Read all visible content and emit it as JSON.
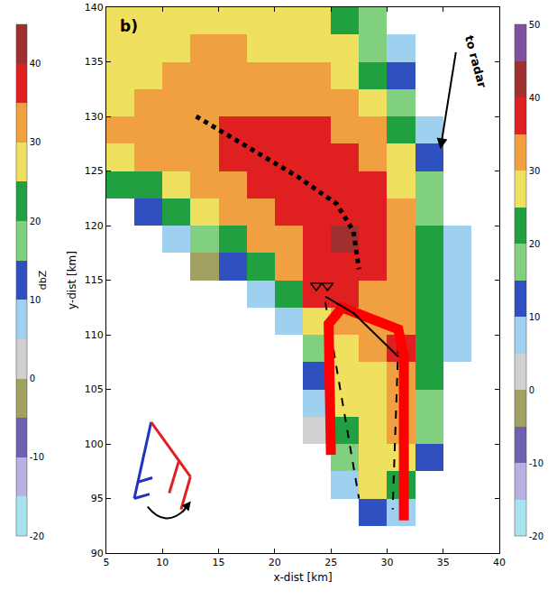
{
  "chart_data": {
    "type": "heatmap",
    "panel_label": "b)",
    "x_label": "x-dist [km]",
    "y_label": "y-dist [km]",
    "annotations": [
      "to radar"
    ],
    "x": [
      6.25,
      8.75,
      11.25,
      13.75,
      16.25,
      18.75,
      21.25,
      23.75,
      26.25,
      28.75,
      31.25,
      33.75,
      36.25,
      38.75
    ],
    "y": [
      91.25,
      93.75,
      96.25,
      98.75,
      101.25,
      103.75,
      106.25,
      108.75,
      111.25,
      113.75,
      116.25,
      118.75,
      121.25,
      123.75,
      126.25,
      128.75,
      131.25,
      133.75,
      136.25,
      138.75
    ],
    "z": [
      [
        null,
        null,
        null,
        null,
        null,
        null,
        null,
        null,
        null,
        null,
        null,
        null,
        null,
        null
      ],
      [
        null,
        null,
        null,
        null,
        null,
        null,
        null,
        null,
        null,
        10,
        5,
        null,
        null,
        null
      ],
      [
        null,
        null,
        null,
        null,
        null,
        null,
        null,
        null,
        5,
        25,
        20,
        null,
        null,
        null
      ],
      [
        null,
        null,
        null,
        null,
        null,
        null,
        null,
        null,
        15,
        25,
        25,
        10,
        null,
        null
      ],
      [
        null,
        null,
        null,
        null,
        null,
        null,
        null,
        0,
        20,
        25,
        30,
        15,
        null,
        null
      ],
      [
        null,
        null,
        null,
        null,
        null,
        null,
        null,
        5,
        25,
        28,
        30,
        15,
        null,
        null
      ],
      [
        null,
        null,
        null,
        null,
        null,
        null,
        null,
        10,
        25,
        28,
        32,
        20,
        null,
        null
      ],
      [
        null,
        null,
        null,
        null,
        null,
        null,
        null,
        15,
        28,
        30,
        35,
        20,
        5,
        null
      ],
      [
        null,
        null,
        null,
        null,
        null,
        null,
        5,
        25,
        30,
        30,
        33,
        20,
        5,
        null
      ],
      [
        null,
        null,
        null,
        null,
        null,
        5,
        20,
        35,
        35,
        33,
        30,
        20,
        5,
        null
      ],
      [
        null,
        null,
        null,
        -5,
        10,
        20,
        30,
        37,
        38,
        35,
        30,
        20,
        5,
        null
      ],
      [
        null,
        null,
        5,
        15,
        22,
        30,
        33,
        37,
        40,
        35,
        30,
        20,
        5,
        null
      ],
      [
        null,
        10,
        20,
        25,
        30,
        33,
        35,
        37,
        38,
        35,
        30,
        18,
        null,
        null
      ],
      [
        20,
        22,
        28,
        30,
        33,
        35,
        35,
        37,
        37,
        35,
        28,
        15,
        null,
        null
      ],
      [
        28,
        30,
        32,
        33,
        35,
        35,
        36,
        36,
        35,
        33,
        25,
        10,
        null,
        null
      ],
      [
        30,
        32,
        33,
        34,
        35,
        35,
        35,
        35,
        33,
        30,
        20,
        5,
        null,
        null
      ],
      [
        28,
        30,
        32,
        33,
        33,
        33,
        33,
        33,
        30,
        25,
        15,
        null,
        null,
        null
      ],
      [
        28,
        28,
        30,
        32,
        32,
        32,
        30,
        30,
        28,
        20,
        10,
        null,
        null,
        null
      ],
      [
        26,
        27,
        28,
        30,
        30,
        28,
        28,
        27,
        25,
        15,
        5,
        null,
        null,
        null
      ],
      [
        25,
        26,
        27,
        28,
        27,
        26,
        25,
        25,
        20,
        15,
        null,
        null,
        null,
        null
      ]
    ],
    "xlim": [
      5,
      40
    ],
    "xticks": [
      5,
      10,
      15,
      20,
      25,
      30,
      35,
      40
    ],
    "ylim": [
      90,
      140
    ],
    "yticks": [
      90,
      95,
      100,
      105,
      110,
      115,
      120,
      125,
      130,
      135,
      140
    ],
    "grid": false,
    "colorbar": {
      "range": [
        -20,
        50
      ],
      "ticks": [
        -20,
        -10,
        0,
        10,
        20,
        30,
        40,
        50
      ]
    },
    "colorbar_left": {
      "title": "dbZ",
      "range": [
        -20,
        45
      ],
      "ticks": [
        -20,
        -10,
        0,
        10,
        20,
        30,
        40
      ]
    },
    "overlays": [
      {
        "color": "black",
        "line_style": "dotted",
        "x": [
          13,
          18,
          22,
          25.5,
          27,
          27.5
        ],
        "y": [
          130,
          127,
          124.5,
          122,
          119.5,
          116
        ]
      },
      {
        "color": "black",
        "line_style": "dashed",
        "x": [
          24.5,
          27.5
        ],
        "y": [
          113,
          95
        ]
      },
      {
        "color": "black",
        "line_style": "dashed",
        "x": [
          31,
          30.5
        ],
        "y": [
          109,
          94
        ]
      },
      {
        "color": "red",
        "line_style": "solid",
        "x": [
          25,
          24.8,
          26,
          31,
          31.5,
          31.5
        ],
        "y": [
          99,
          111,
          112.5,
          110.5,
          108,
          93
        ]
      },
      {
        "color": "black",
        "line_style": "solid",
        "x": [
          24.5,
          27,
          31
        ],
        "y": [
          113.5,
          112,
          108
        ]
      },
      {
        "color": "black",
        "marker": "triangle-down-open",
        "x": [
          23.7,
          24.7
        ],
        "y": [
          114.5,
          114.5
        ]
      }
    ]
  }
}
